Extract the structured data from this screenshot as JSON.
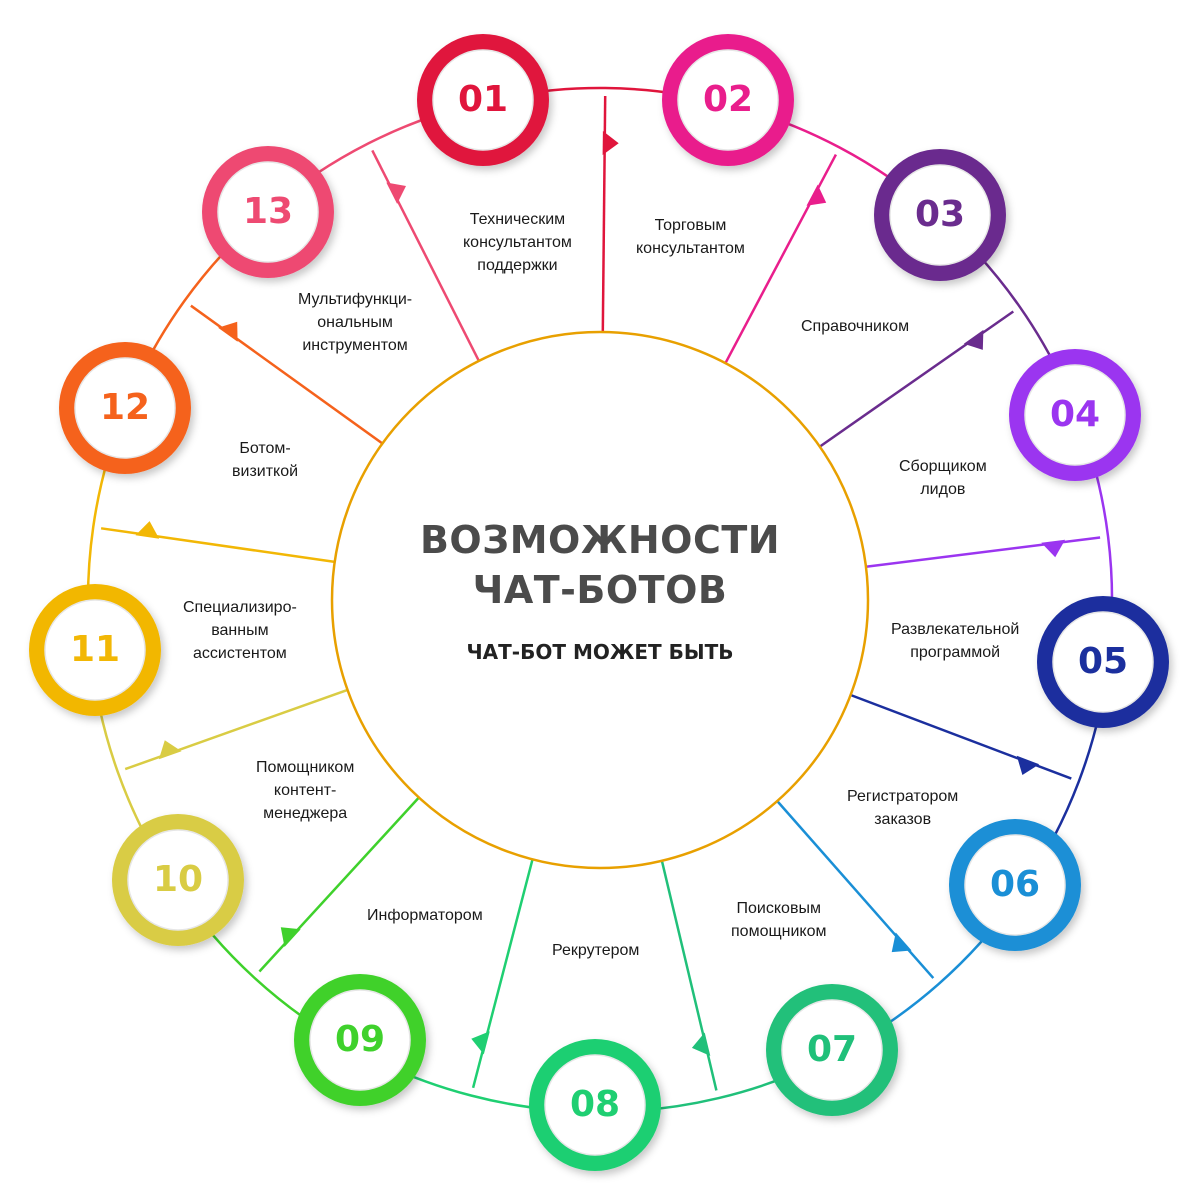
{
  "title_line1": "ВОЗМОЖНОСТИ",
  "title_line2": "ЧАТ-БОТОВ",
  "subtitle": "ЧАТ-БОТ МОЖЕТ БЫТЬ",
  "nodes": [
    {
      "number": "01",
      "label": "Техническим\nконсультантом\nподдержки",
      "color": "#e0153c"
    },
    {
      "number": "02",
      "label": "Торговым\nконсультантом",
      "color": "#e91e8c"
    },
    {
      "number": "03",
      "label": "Справочником",
      "color": "#6a2c8e"
    },
    {
      "number": "04",
      "label": "Сборщиком\nлидов",
      "color": "#9b35f0"
    },
    {
      "number": "05",
      "label": "Развлекательной\nпрограммой",
      "color": "#1b2f9e"
    },
    {
      "number": "06",
      "label": "Регистратором\nзаказов",
      "color": "#1a8fd6"
    },
    {
      "number": "07",
      "label": "Поисковым\nпомощником",
      "color": "#20c07a"
    },
    {
      "number": "08",
      "label": "Рекрутером",
      "color": "#1fcf72"
    },
    {
      "number": "09",
      "label": "Информатором",
      "color": "#3fd12c"
    },
    {
      "number": "10",
      "label": "Помощником\nконтент-\nменеджера",
      "color": "#d9cc44"
    },
    {
      "number": "11",
      "label": "Специализиро-\nванным\nассистентом",
      "color": "#f2b705"
    },
    {
      "number": "12",
      "label": "Ботом-\nвизиткой",
      "color": "#f5621c"
    },
    {
      "number": "13",
      "label": "Мультифункци-\nональным\nинструментом",
      "color": "#ee4a72"
    }
  ]
}
